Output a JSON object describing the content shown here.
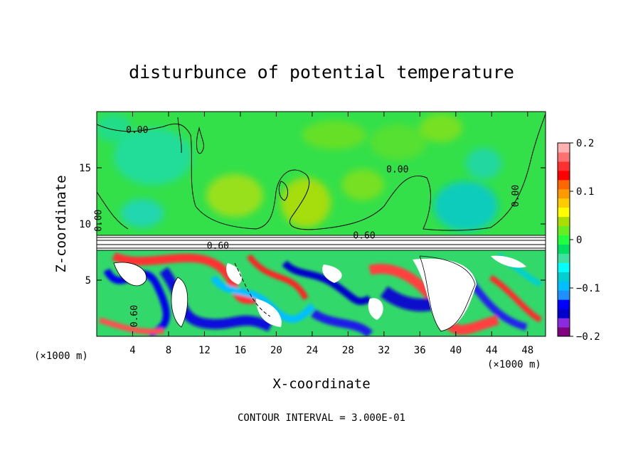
{
  "chart_data": {
    "type": "heatmap",
    "title": "disturbunce of potential temperature",
    "xlabel": "X-coordinate",
    "ylabel": "Z-coordinate",
    "x_unit": "(×1000 m)",
    "y_unit": "(×1000 m)",
    "xlim": [
      0,
      50
    ],
    "ylim": [
      0,
      20
    ],
    "x_ticks": [
      4,
      8,
      12,
      16,
      20,
      24,
      28,
      32,
      36,
      40,
      44,
      48
    ],
    "y_ticks": [
      5,
      10,
      15
    ],
    "footer": "CONTOUR INTERVAL = 3.000E-01",
    "colorbar": {
      "min": -0.2,
      "max": 0.2,
      "ticks": [
        "0.2",
        "0.1",
        "0",
        "−0.1",
        "−0.2"
      ],
      "colors": [
        "#800080",
        "#8a2be2",
        "#0000cd",
        "#0000ff",
        "#1e90ff",
        "#00bfff",
        "#00ced1",
        "#00ffff",
        "#40e0a0",
        "#00e060",
        "#20ff40",
        "#66ee22",
        "#aadd00",
        "#ffff00",
        "#ffcc00",
        "#ff9900",
        "#ff6600",
        "#ff0000",
        "#ff3030",
        "#ff7070",
        "#ffb0b0"
      ]
    },
    "contour_labels": [
      {
        "text": "0.00",
        "x": 4.5,
        "z": 18.1
      },
      {
        "text": "0.00",
        "x": 33.5,
        "z": 14.6
      },
      {
        "text": "0.00",
        "x": 47,
        "z": 12.5,
        "rotate": true
      },
      {
        "text": "0.00",
        "x": 0.5,
        "z": 10.3,
        "rotate": true
      },
      {
        "text": "0.60",
        "x": 29.8,
        "z": 8.7
      },
      {
        "text": "0.60",
        "x": 13.5,
        "z": 7.8
      },
      {
        "text": "0.60",
        "x": 4.5,
        "z": 1.8,
        "rotate": true
      }
    ]
  }
}
